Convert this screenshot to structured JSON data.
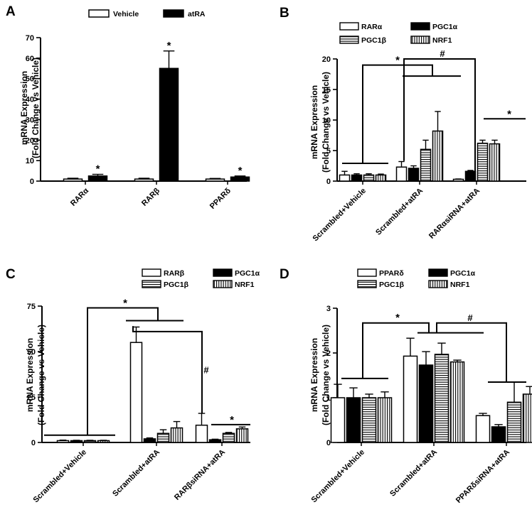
{
  "chart_data": [
    {
      "panel": "A",
      "type": "bar",
      "ylabel": [
        "mRNA Expression",
        "(Fold Change vs Vehicle)"
      ],
      "ylim": [
        0,
        70
      ],
      "yticks": [
        0,
        10,
        20,
        30,
        40,
        50,
        60,
        70
      ],
      "categories": [
        "RARα",
        "RARβ",
        "PPARδ"
      ],
      "series": [
        {
          "name": "Vehicle",
          "pattern": "white",
          "values": [
            1,
            1,
            1
          ],
          "errors": [
            0.4,
            0.4,
            0.3
          ]
        },
        {
          "name": "atRA",
          "pattern": "black",
          "values": [
            2.5,
            55,
            2
          ],
          "errors": [
            0.8,
            8.5,
            0.5
          ]
        }
      ],
      "significance": [
        {
          "category": 0,
          "series": 1,
          "label": "*"
        },
        {
          "category": 1,
          "series": 1,
          "label": "*"
        },
        {
          "category": 2,
          "series": 1,
          "label": "*"
        }
      ]
    },
    {
      "panel": "B",
      "type": "bar",
      "ylabel": [
        "mRNA Expression",
        "(Fold Change vs Vehicle)"
      ],
      "ylim": [
        0,
        20
      ],
      "yticks": [
        0,
        5,
        10,
        15,
        20
      ],
      "categories": [
        "Scrambled+Vehicle",
        "Scrambled+atRA",
        "RARαsiRNA+atRA"
      ],
      "series": [
        {
          "name": "RARα",
          "pattern": "white",
          "values": [
            1,
            2.3,
            0.3
          ],
          "errors": [
            0.6,
            0.9,
            0.05
          ]
        },
        {
          "name": "PGC1α",
          "pattern": "black",
          "values": [
            1,
            2.1,
            1.6
          ],
          "errors": [
            0.2,
            0.4,
            0.15
          ]
        },
        {
          "name": "PGC1β",
          "pattern": "hstripe",
          "values": [
            1,
            5.2,
            6.2
          ],
          "errors": [
            0.2,
            1.5,
            0.5
          ]
        },
        {
          "name": "NRF1",
          "pattern": "vstripe",
          "values": [
            1,
            8.2,
            6.1
          ],
          "errors": [
            0.15,
            3.2,
            0.6
          ]
        }
      ],
      "significance_labels": [
        "*",
        "#",
        "*"
      ]
    },
    {
      "panel": "C",
      "type": "bar",
      "ylabel": [
        "mRNA Expression",
        "(Fold Change vs Vehicle)"
      ],
      "ylim": [
        0,
        75
      ],
      "yticks": [
        0,
        25,
        50,
        75
      ],
      "categories": [
        "Scrambled+Vehicle",
        "Scrambled+atRA",
        "RARβsiRNA+atRA"
      ],
      "series": [
        {
          "name": "RARβ",
          "pattern": "white",
          "values": [
            1,
            55,
            9.5
          ],
          "errors": [
            0.3,
            8.5,
            6.5
          ]
        },
        {
          "name": "PGC1α",
          "pattern": "black",
          "values": [
            1,
            2,
            1.5
          ],
          "errors": [
            0.2,
            0.5,
            0.3
          ]
        },
        {
          "name": "PGC1β",
          "pattern": "hstripe",
          "values": [
            1,
            5,
            5
          ],
          "errors": [
            0.2,
            2,
            0.5
          ]
        },
        {
          "name": "NRF1",
          "pattern": "vstripe",
          "values": [
            1,
            8,
            7.5
          ],
          "errors": [
            0.2,
            3.5,
            1
          ]
        }
      ],
      "significance_labels": [
        "*",
        "#",
        "*"
      ]
    },
    {
      "panel": "D",
      "type": "bar",
      "ylabel": [
        "mRNA Expression",
        "(Fold Change vs Vehicle)"
      ],
      "ylim": [
        0,
        3
      ],
      "yticks": [
        0,
        1,
        2,
        3
      ],
      "categories": [
        "Scrambled+Vehicle",
        "Scrambled+atRA",
        "PPARδsiRNA+atRA"
      ],
      "series": [
        {
          "name": "PPARδ",
          "pattern": "white",
          "values": [
            1,
            1.93,
            0.6
          ],
          "errors": [
            0.3,
            0.4,
            0.05
          ]
        },
        {
          "name": "PGC1α",
          "pattern": "black",
          "values": [
            1,
            1.73,
            0.35
          ],
          "errors": [
            0.22,
            0.3,
            0.05
          ]
        },
        {
          "name": "PGC1β",
          "pattern": "hstripe",
          "values": [
            1,
            1.97,
            0.9
          ],
          "errors": [
            0.08,
            0.25,
            0.45
          ]
        },
        {
          "name": "NRF1",
          "pattern": "vstripe",
          "values": [
            1,
            1.8,
            1.08
          ],
          "errors": [
            0.13,
            0.04,
            0.17
          ]
        }
      ],
      "significance_labels": [
        "*",
        "#"
      ]
    }
  ]
}
